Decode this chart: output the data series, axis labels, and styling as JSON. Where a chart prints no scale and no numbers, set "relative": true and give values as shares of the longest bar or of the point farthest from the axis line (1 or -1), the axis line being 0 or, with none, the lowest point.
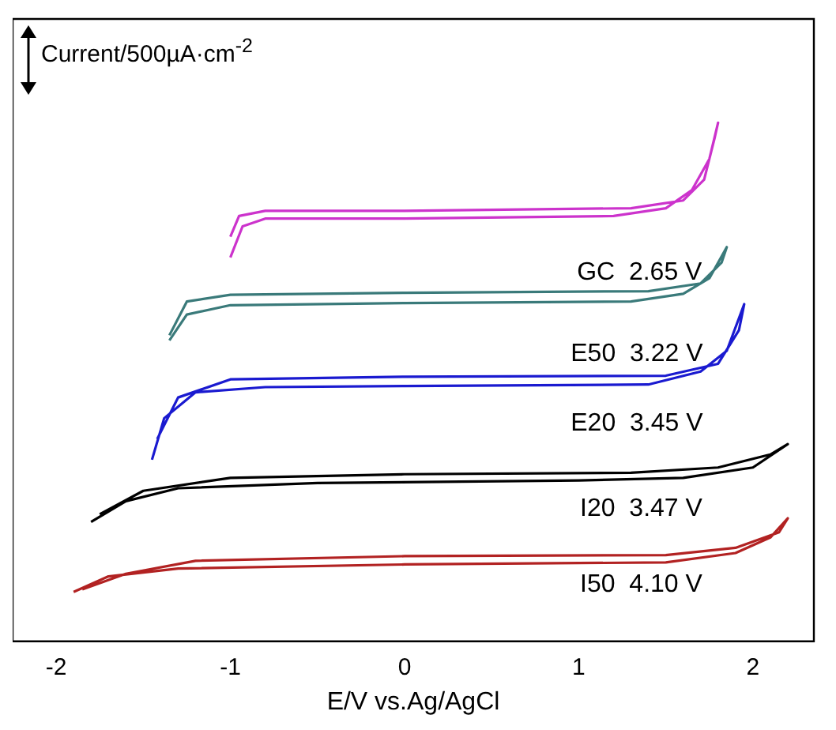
{
  "chart_data": {
    "type": "line",
    "relative": true,
    "ylabel": "Current/500µA·cm$^{-2}$",
    "xlabel": "E/V vs.Ag/AgCl",
    "xlim": [
      -2.25,
      2.35
    ],
    "xticks": [
      -2,
      -1,
      0,
      1,
      2
    ],
    "grid": false,
    "legend": false,
    "marker": "none",
    "line_style": "solid",
    "series": [
      {
        "color": "#cc33cc",
        "x": [
          -1,
          -0.93,
          -0.8,
          0,
          1.2,
          1.5,
          1.65,
          1.75,
          1.8,
          1.78,
          1.72,
          1.6,
          1.3,
          0,
          -0.8,
          -0.95,
          -1
        ],
        "values": [
          0.74,
          0.8,
          0.815,
          0.815,
          0.82,
          0.835,
          0.87,
          0.93,
          1,
          0.97,
          0.89,
          0.85,
          0.835,
          0.83,
          0.83,
          0.82,
          0.78
        ]
      },
      {
        "color": "#3a7a7a",
        "x": [
          -1.35,
          -1.25,
          -1,
          0,
          1.3,
          1.6,
          1.75,
          1.85,
          1.82,
          1.7,
          1.4,
          0,
          -1,
          -1.25,
          -1.35
        ],
        "values": [
          0.58,
          0.63,
          0.648,
          0.652,
          0.655,
          0.67,
          0.7,
          0.76,
          0.73,
          0.69,
          0.675,
          0.672,
          0.668,
          0.655,
          0.59
        ]
      },
      {
        "color": "#1a1ad0",
        "x": [
          -1.45,
          -1.38,
          -1.2,
          -0.8,
          0,
          1.4,
          1.7,
          1.85,
          1.95,
          1.92,
          1.8,
          1.5,
          0,
          -1,
          -1.3,
          -1.42
        ],
        "values": [
          0.35,
          0.43,
          0.48,
          0.49,
          0.492,
          0.495,
          0.52,
          0.56,
          0.65,
          0.6,
          0.535,
          0.512,
          0.51,
          0.505,
          0.47,
          0.39
        ]
      },
      {
        "color": "#000000",
        "x": [
          -1.8,
          -1.6,
          -1.3,
          -0.5,
          1,
          1.6,
          2,
          2.2,
          2.1,
          1.8,
          1.3,
          0,
          -1,
          -1.5,
          -1.75
        ],
        "values": [
          0.23,
          0.27,
          0.295,
          0.305,
          0.31,
          0.315,
          0.335,
          0.38,
          0.36,
          0.335,
          0.325,
          0.322,
          0.315,
          0.29,
          0.245
        ]
      },
      {
        "color": "#b22222",
        "x": [
          -1.9,
          -1.7,
          -1.3,
          0,
          1.5,
          1.9,
          2.1,
          2.2,
          2.15,
          1.9,
          1.5,
          0,
          -1.2,
          -1.6,
          -1.85
        ],
        "values": [
          0.095,
          0.125,
          0.14,
          0.148,
          0.152,
          0.17,
          0.2,
          0.237,
          0.21,
          0.18,
          0.166,
          0.164,
          0.155,
          0.13,
          0.1
        ]
      }
    ],
    "annotations": [
      "GC  2.65 V",
      "E50  3.22 V",
      "E20  3.45 V",
      "I20  3.47 V",
      "I50  4.10 V"
    ]
  }
}
